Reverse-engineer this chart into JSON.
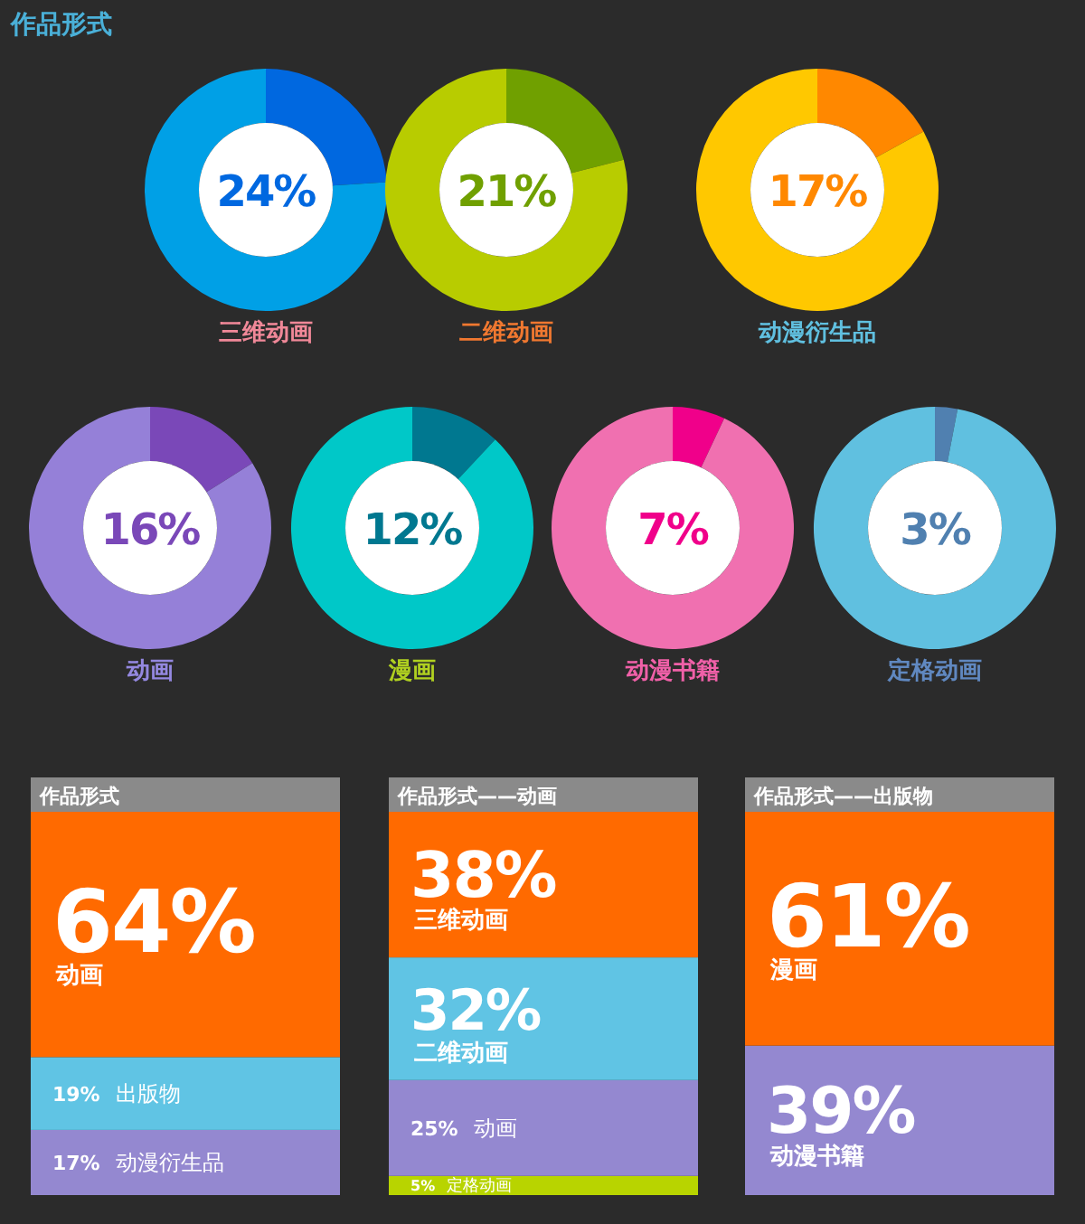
{
  "chart_data": [
    {
      "type": "other",
      "title": "作品形式"
    },
    {
      "type": "donut",
      "title": "三维动画",
      "categories": [
        null,
        null
      ],
      "values": [
        24,
        76
      ],
      "colors": [
        "#0068e0",
        "#00a0e6"
      ],
      "annotations": [
        "24%"
      ]
    },
    {
      "type": "donut",
      "title": "二维动画",
      "categories": [
        null,
        null
      ],
      "values": [
        21,
        79
      ],
      "colors": [
        "#70a000",
        "#b8cc00"
      ],
      "annotations": [
        "21%"
      ]
    },
    {
      "type": "donut",
      "title": "动漫衍生品",
      "categories": [
        null,
        null
      ],
      "values": [
        17,
        83
      ],
      "colors": [
        "#ff8800",
        "#ffc800"
      ],
      "annotations": [
        "17%"
      ]
    },
    {
      "type": "donut",
      "title": "动画",
      "categories": [
        null,
        null
      ],
      "values": [
        16,
        84
      ],
      "colors": [
        "#7a48b8",
        "#9580d8"
      ],
      "annotations": [
        "16%"
      ]
    },
    {
      "type": "donut",
      "title": "漫画",
      "categories": [
        null,
        null
      ],
      "values": [
        12,
        88
      ],
      "colors": [
        "#007890",
        "#00c8c8"
      ],
      "annotations": [
        "12%"
      ]
    },
    {
      "type": "donut",
      "title": "动漫书籍",
      "categories": [
        null,
        null
      ],
      "values": [
        7,
        93
      ],
      "colors": [
        "#f0008a",
        "#f070b0"
      ],
      "annotations": [
        "7%"
      ]
    },
    {
      "type": "donut",
      "title": "定格动画",
      "categories": [
        null,
        null
      ],
      "values": [
        3,
        97
      ],
      "colors": [
        "#5080b0",
        "#60c0e0"
      ],
      "annotations": [
        "3%"
      ]
    },
    {
      "type": "bar",
      "stacked": true,
      "title": "作品形式",
      "categories": [
        null
      ],
      "series": [
        {
          "name": "动漫衍生品",
          "color": "#9488d0",
          "values": [
            17
          ],
          "value_labels": [
            "17%"
          ]
        },
        {
          "name": "出版物",
          "color": "#60c4e4",
          "values": [
            19
          ],
          "value_labels": [
            "19%"
          ]
        },
        {
          "name": "动画",
          "color": "#ff6a00",
          "values": [
            64
          ],
          "value_labels": [
            "64%"
          ]
        }
      ]
    },
    {
      "type": "bar",
      "stacked": true,
      "title": "作品形式——动画",
      "categories": [
        null
      ],
      "series": [
        {
          "name": "定格动画",
          "color": "#b8d400",
          "values": [
            5
          ],
          "value_labels": [
            "5%"
          ]
        },
        {
          "name": "动画",
          "color": "#9488d0",
          "values": [
            25
          ],
          "value_labels": [
            "25%"
          ]
        },
        {
          "name": "二维动画",
          "color": "#60c4e4",
          "values": [
            32
          ],
          "value_labels": [
            "32%"
          ]
        },
        {
          "name": "三维动画",
          "color": "#ff6a00",
          "values": [
            38
          ],
          "value_labels": [
            "38%"
          ]
        }
      ]
    },
    {
      "type": "bar",
      "stacked": true,
      "title": "作品形式——出版物",
      "categories": [
        null
      ],
      "series": [
        {
          "name": "动漫书籍",
          "color": "#9488d0",
          "values": [
            39
          ],
          "value_labels": [
            "39%"
          ]
        },
        {
          "name": "漫画",
          "color": "#ff6a00",
          "values": [
            61
          ],
          "value_labels": [
            "61%"
          ]
        }
      ]
    }
  ]
}
